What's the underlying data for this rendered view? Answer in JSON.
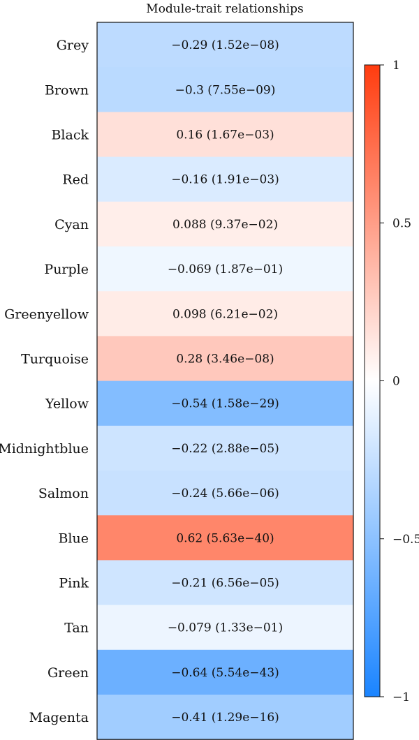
{
  "chart_data": {
    "type": "heatmap",
    "title": "Module-trait relationships",
    "rows": [
      {
        "label": "Grey",
        "value": -0.29,
        "pvalue": "1.52e−08",
        "text": "−0.29 (1.52e−08)"
      },
      {
        "label": "Brown",
        "value": -0.3,
        "pvalue": "7.55e−09",
        "text": "−0.3 (7.55e−09)"
      },
      {
        "label": "Black",
        "value": 0.16,
        "pvalue": "1.67e−03",
        "text": "0.16 (1.67e−03)"
      },
      {
        "label": "Red",
        "value": -0.16,
        "pvalue": "1.91e−03",
        "text": "−0.16 (1.91e−03)"
      },
      {
        "label": "Cyan",
        "value": 0.088,
        "pvalue": "9.37e−02",
        "text": "0.088 (9.37e−02)"
      },
      {
        "label": "Purple",
        "value": -0.069,
        "pvalue": "1.87e−01",
        "text": "−0.069 (1.87e−01)"
      },
      {
        "label": "Greenyellow",
        "value": 0.098,
        "pvalue": "6.21e−02",
        "text": "0.098 (6.21e−02)"
      },
      {
        "label": "Turquoise",
        "value": 0.28,
        "pvalue": "3.46e−08",
        "text": "0.28 (3.46e−08)"
      },
      {
        "label": "Yellow",
        "value": -0.54,
        "pvalue": "1.58e−29",
        "text": "−0.54 (1.58e−29)"
      },
      {
        "label": "Midnightblue",
        "value": -0.22,
        "pvalue": "2.88e−05",
        "text": "−0.22 (2.88e−05)"
      },
      {
        "label": "Salmon",
        "value": -0.24,
        "pvalue": "5.66e−06",
        "text": "−0.24 (5.66e−06)"
      },
      {
        "label": "Blue",
        "value": 0.62,
        "pvalue": "5.63e−40",
        "text": "0.62 (5.63e−40)"
      },
      {
        "label": "Pink",
        "value": -0.21,
        "pvalue": "6.56e−05",
        "text": "−0.21 (6.56e−05)"
      },
      {
        "label": "Tan",
        "value": -0.079,
        "pvalue": "1.33e−01",
        "text": "−0.079 (1.33e−01)"
      },
      {
        "label": "Green",
        "value": -0.64,
        "pvalue": "5.54e−43",
        "text": "−0.64 (5.54e−43)"
      },
      {
        "label": "Magenta",
        "value": -0.41,
        "pvalue": "1.29e−16",
        "text": "−0.41 (1.29e−16)"
      }
    ],
    "colorbar": {
      "range": [
        -1,
        1
      ],
      "ticks": [
        {
          "value": 1,
          "label": "1"
        },
        {
          "value": 0.5,
          "label": "0.5"
        },
        {
          "value": 0,
          "label": "0"
        },
        {
          "value": -0.5,
          "label": "−0.5"
        },
        {
          "value": -1,
          "label": "−1"
        }
      ],
      "colors": {
        "negative": "#1a84ff",
        "zero": "#ffffff",
        "positive": "#ff3c0f"
      }
    }
  }
}
